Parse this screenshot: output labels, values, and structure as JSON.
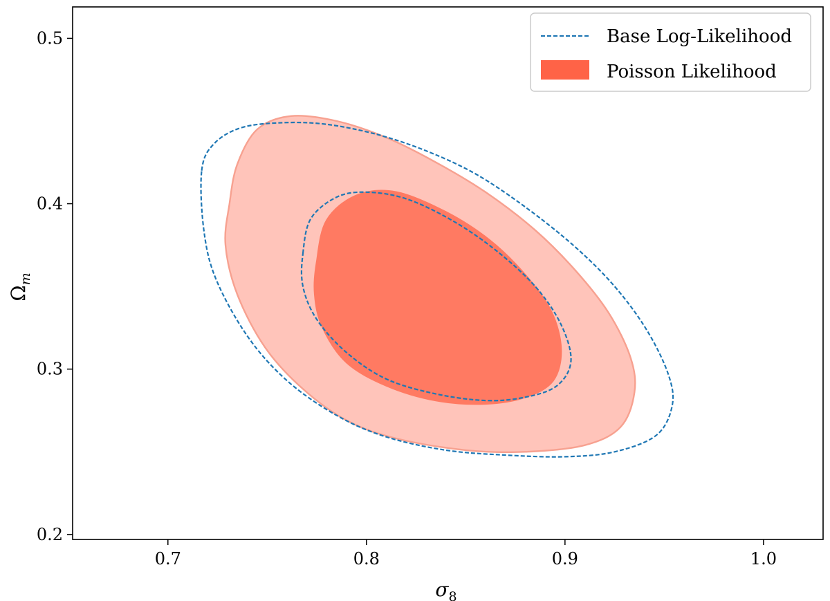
{
  "chart_data": {
    "type": "contour",
    "title": "",
    "xlabel": "σ",
    "xlabel_sub": "8",
    "ylabel": "Ω",
    "ylabel_sub": "m",
    "xlim": [
      0.652,
      1.03
    ],
    "ylim": [
      0.197,
      0.519
    ],
    "xticks": [
      0.7,
      0.8,
      0.9,
      1.0
    ],
    "xtick_labels": [
      "0.7",
      "0.8",
      "0.9",
      "1.0"
    ],
    "yticks": [
      0.2,
      0.3,
      0.4,
      0.5
    ],
    "ytick_labels": [
      "0.2",
      "0.3",
      "0.4",
      "0.5"
    ],
    "grid": false,
    "legend_position": "top-right",
    "series": [
      {
        "name": "Base Log-Likelihood",
        "style": "dashed-line",
        "color": "#1f77b4",
        "contours": [
          {
            "level": "outer",
            "points": [
              [
                0.717,
                0.42
              ],
              [
                0.723,
                0.436
              ],
              [
                0.737,
                0.446
              ],
              [
                0.758,
                0.449
              ],
              [
                0.78,
                0.448
              ],
              [
                0.805,
                0.442
              ],
              [
                0.83,
                0.432
              ],
              [
                0.855,
                0.418
              ],
              [
                0.88,
                0.398
              ],
              [
                0.905,
                0.374
              ],
              [
                0.925,
                0.35
              ],
              [
                0.941,
                0.324
              ],
              [
                0.952,
                0.297
              ],
              [
                0.954,
                0.278
              ],
              [
                0.946,
                0.26
              ],
              [
                0.925,
                0.25
              ],
              [
                0.9,
                0.247
              ],
              [
                0.87,
                0.248
              ],
              [
                0.84,
                0.251
              ],
              [
                0.81,
                0.259
              ],
              [
                0.785,
                0.272
              ],
              [
                0.76,
                0.293
              ],
              [
                0.74,
                0.32
              ],
              [
                0.724,
                0.355
              ],
              [
                0.718,
                0.385
              ]
            ]
          },
          {
            "level": "inner",
            "points": [
              [
                0.768,
                0.37
              ],
              [
                0.772,
                0.391
              ],
              [
                0.785,
                0.404
              ],
              [
                0.8,
                0.407
              ],
              [
                0.82,
                0.403
              ],
              [
                0.843,
                0.39
              ],
              [
                0.865,
                0.372
              ],
              [
                0.885,
                0.35
              ],
              [
                0.898,
                0.327
              ],
              [
                0.903,
                0.305
              ],
              [
                0.896,
                0.29
              ],
              [
                0.88,
                0.283
              ],
              [
                0.86,
                0.281
              ],
              [
                0.835,
                0.285
              ],
              [
                0.81,
                0.294
              ],
              [
                0.79,
                0.31
              ],
              [
                0.775,
                0.33
              ],
              [
                0.768,
                0.35
              ]
            ]
          }
        ]
      },
      {
        "name": "Poisson Likelihood",
        "style": "filled",
        "color": "#ff6347",
        "contours": [
          {
            "level": "outer",
            "fill": "#ffc4ba",
            "stroke": "#f7a190",
            "points": [
              [
                0.731,
                0.4
              ],
              [
                0.735,
                0.424
              ],
              [
                0.745,
                0.445
              ],
              [
                0.762,
                0.453
              ],
              [
                0.785,
                0.45
              ],
              [
                0.81,
                0.44
              ],
              [
                0.835,
                0.425
              ],
              [
                0.86,
                0.407
              ],
              [
                0.885,
                0.384
              ],
              [
                0.905,
                0.36
              ],
              [
                0.922,
                0.334
              ],
              [
                0.933,
                0.307
              ],
              [
                0.935,
                0.286
              ],
              [
                0.928,
                0.265
              ],
              [
                0.91,
                0.254
              ],
              [
                0.88,
                0.25
              ],
              [
                0.85,
                0.251
              ],
              [
                0.815,
                0.258
              ],
              [
                0.79,
                0.269
              ],
              [
                0.768,
                0.288
              ],
              [
                0.749,
                0.313
              ],
              [
                0.735,
                0.345
              ],
              [
                0.729,
                0.375
              ]
            ]
          },
          {
            "level": "inner",
            "fill": "#ff7a62",
            "stroke": "#ff7a62",
            "points": [
              [
                0.775,
                0.365
              ],
              [
                0.78,
                0.39
              ],
              [
                0.795,
                0.405
              ],
              [
                0.815,
                0.407
              ],
              [
                0.84,
                0.395
              ],
              [
                0.862,
                0.378
              ],
              [
                0.88,
                0.357
              ],
              [
                0.893,
                0.335
              ],
              [
                0.898,
                0.312
              ],
              [
                0.894,
                0.293
              ],
              [
                0.88,
                0.283
              ],
              [
                0.86,
                0.279
              ],
              [
                0.835,
                0.281
              ],
              [
                0.81,
                0.29
              ],
              [
                0.79,
                0.304
              ],
              [
                0.778,
                0.325
              ],
              [
                0.774,
                0.345
              ]
            ]
          }
        ]
      }
    ]
  },
  "legend": {
    "items": [
      {
        "label": "Base Log-Likelihood"
      },
      {
        "label": "Poisson Likelihood"
      }
    ]
  }
}
